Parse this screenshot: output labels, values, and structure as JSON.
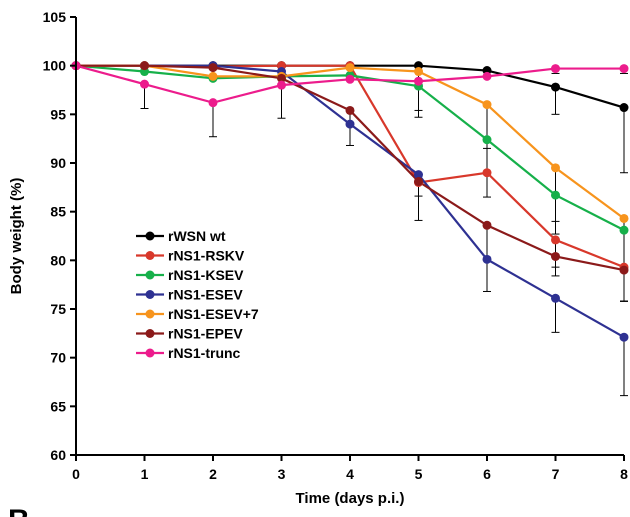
{
  "chart_data": {
    "type": "line",
    "xlabel": "Time (days p.i.)",
    "ylabel": "Body weight (%)",
    "xlim": [
      0,
      8
    ],
    "ylim": [
      60,
      105
    ],
    "x_ticks": [
      0,
      1,
      2,
      3,
      4,
      5,
      6,
      7,
      8
    ],
    "y_ticks": [
      60,
      65,
      70,
      75,
      80,
      85,
      90,
      95,
      100,
      105
    ],
    "grid": false,
    "legend_position": "lower-left",
    "panel_letter": "B",
    "x": [
      0,
      1,
      2,
      3,
      4,
      5,
      6,
      7,
      8
    ],
    "series": [
      {
        "name": "rWSN wt",
        "color": "#000000",
        "values": [
          100,
          100,
          100,
          100,
          100,
          100,
          99.5,
          97.8,
          95.7
        ],
        "error": [
          0,
          0,
          0,
          0,
          0,
          0,
          0.5,
          2.8,
          6.7
        ]
      },
      {
        "name": "rNS1-RSKV",
        "color": "#d8382b",
        "values": [
          100,
          100,
          99.9,
          100,
          100,
          88.0,
          89.0,
          82.1,
          79.3
        ],
        "error": [
          0,
          0,
          0,
          0,
          0,
          0,
          2.5,
          2.8,
          3.5
        ]
      },
      {
        "name": "rNS1-KSEV",
        "color": "#16b04a",
        "values": [
          100,
          99.4,
          98.7,
          98.9,
          99.0,
          97.9,
          92.4,
          86.7,
          83.1
        ],
        "error": [
          0,
          0,
          0,
          0,
          0,
          3.2,
          3.5,
          4.0,
          7.3
        ]
      },
      {
        "name": "rNS1-ESEV",
        "color": "#2e3192",
        "values": [
          100,
          100,
          100,
          99.4,
          94.0,
          88.8,
          80.1,
          76.1,
          72.1
        ],
        "error": [
          0,
          0,
          0,
          0,
          2.2,
          2.2,
          3.3,
          3.5,
          6.0
        ]
      },
      {
        "name": "rNS1-ESEV+7",
        "color": "#f7941d",
        "values": [
          100,
          100,
          98.9,
          98.9,
          99.8,
          99.4,
          96.0,
          89.5,
          84.3
        ],
        "error": [
          0,
          0,
          0,
          0,
          0,
          4.0,
          4.5,
          5.5,
          8.5
        ]
      },
      {
        "name": "rNS1-EPEV",
        "color": "#8b1a1a",
        "values": [
          100,
          100,
          99.8,
          98.7,
          95.4,
          88.1,
          83.6,
          80.4,
          79.0
        ],
        "error": [
          0,
          0,
          0,
          0,
          1.6,
          4.0,
          3.6,
          2.0,
          3.2
        ]
      },
      {
        "name": "rNS1-trunc",
        "color": "#ec1c8c",
        "values": [
          100,
          98.1,
          96.2,
          98.0,
          98.6,
          98.4,
          98.9,
          99.7,
          99.7
        ],
        "error": [
          0,
          2.5,
          3.5,
          3.4,
          0,
          0,
          0,
          0.5,
          0.5
        ]
      }
    ]
  }
}
